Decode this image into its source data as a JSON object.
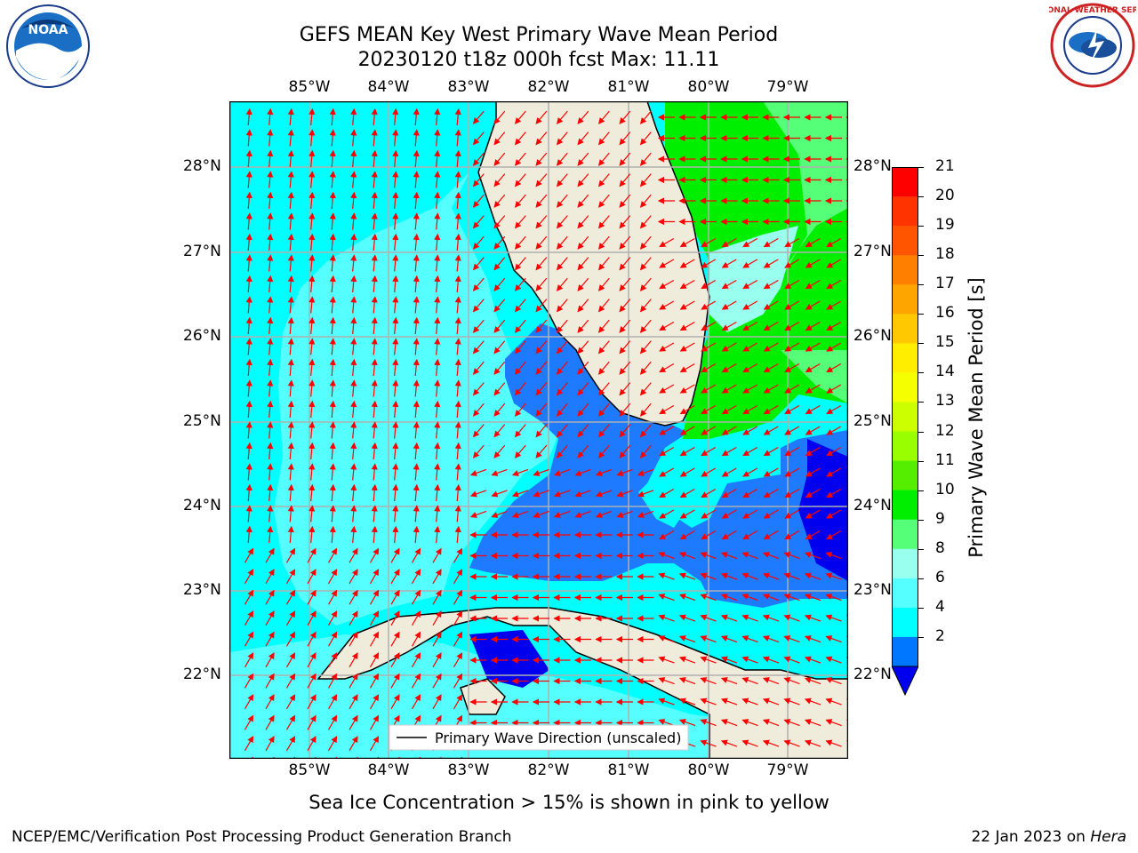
{
  "title": {
    "line1": "GEFS MEAN Key West Primary Wave Mean Period",
    "line2": "20230120 t18z 000h fcst   Max: 11.11"
  },
  "logos": {
    "left": {
      "icon": "noaa-logo",
      "text": "NOAA"
    },
    "right": {
      "icon": "nws-logo",
      "text": "NATIONAL WEATHER SERVICE"
    }
  },
  "map": {
    "lon_labels": [
      "85°W",
      "84°W",
      "83°W",
      "82°W",
      "81°W",
      "80°W",
      "79°W"
    ],
    "lat_labels": [
      "28°N",
      "27°N",
      "26°N",
      "25°N",
      "24°N",
      "23°N",
      "22°N"
    ],
    "legend": "Primary Wave Direction (unscaled)",
    "colors": {
      "land": "#efecdc",
      "arrow": "#ff0000",
      "grid": "#b0b0b0"
    }
  },
  "colorbar": {
    "label": "Primary Wave Mean Period [s]",
    "ticks": [
      "21",
      "20",
      "19",
      "18",
      "17",
      "16",
      "15",
      "14",
      "13",
      "12",
      "11",
      "10",
      "9",
      "8",
      "6",
      "4",
      "2"
    ],
    "colors": [
      "#ff0000",
      "#ff3300",
      "#ff5500",
      "#ff8000",
      "#ffa500",
      "#ffc800",
      "#ffee00",
      "#f5ff00",
      "#ccff00",
      "#99ff00",
      "#55ee00",
      "#00ee00",
      "#55ff77",
      "#99ffee",
      "#55ffff",
      "#00ffff",
      "#0077ff"
    ],
    "extend_color": "#0000ee"
  },
  "note": "Sea Ice Concentration > 15% is shown in pink to yellow",
  "footer": {
    "left": "NCEP/EMC/Verification Post Processing Product Generation Branch",
    "date": "22 Jan 2023 on",
    "machine": "Hera"
  }
}
